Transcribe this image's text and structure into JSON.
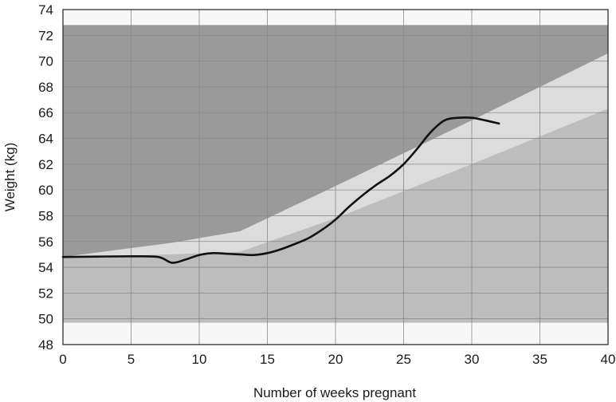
{
  "chart_data": {
    "type": "line",
    "xlabel": "Number of weeks pregnant",
    "ylabel": "Weight (kg)",
    "xlim": [
      0,
      40
    ],
    "ylim": [
      48,
      74
    ],
    "x_ticks": [
      "0",
      "5",
      "10",
      "15",
      "20",
      "25",
      "30",
      "35",
      "40"
    ],
    "y_ticks": [
      "48",
      "50",
      "52",
      "54",
      "56",
      "58",
      "60",
      "62",
      "64",
      "66",
      "68",
      "70",
      "72",
      "74"
    ],
    "grid": true,
    "colors": {
      "plot_background": "#f7f7f7",
      "outer_band": "#9a9a9a",
      "lower_band": "#bdbdbd",
      "target_band": "#dcdcdc",
      "grid": "#8a8a8a",
      "line": "#111111"
    },
    "bands": {
      "outer_range": [
        49.7,
        72.8
      ],
      "target_upper": [
        {
          "x": 0,
          "y": 54.8
        },
        {
          "x": 8,
          "y": 55.9
        },
        {
          "x": 13,
          "y": 56.8
        },
        {
          "x": 20,
          "y": 60.3
        },
        {
          "x": 30,
          "y": 65.4
        },
        {
          "x": 40,
          "y": 70.6
        }
      ],
      "target_lower": [
        {
          "x": 0,
          "y": 54.7
        },
        {
          "x": 8,
          "y": 55.0
        },
        {
          "x": 13,
          "y": 55.2
        },
        {
          "x": 20,
          "y": 57.8
        },
        {
          "x": 30,
          "y": 62.0
        },
        {
          "x": 40,
          "y": 66.3
        }
      ]
    },
    "series": [
      {
        "points": [
          {
            "x": 0,
            "y": 54.8
          },
          {
            "x": 5,
            "y": 54.85
          },
          {
            "x": 7,
            "y": 54.8
          },
          {
            "x": 8,
            "y": 54.35
          },
          {
            "x": 9,
            "y": 54.6
          },
          {
            "x": 10,
            "y": 54.95
          },
          {
            "x": 11,
            "y": 55.1
          },
          {
            "x": 12,
            "y": 55.05
          },
          {
            "x": 13,
            "y": 55.0
          },
          {
            "x": 14,
            "y": 54.95
          },
          {
            "x": 15,
            "y": 55.1
          },
          {
            "x": 16,
            "y": 55.4
          },
          {
            "x": 17,
            "y": 55.8
          },
          {
            "x": 18,
            "y": 56.25
          },
          {
            "x": 19,
            "y": 56.9
          },
          {
            "x": 20,
            "y": 57.7
          },
          {
            "x": 21,
            "y": 58.7
          },
          {
            "x": 22,
            "y": 59.6
          },
          {
            "x": 23,
            "y": 60.4
          },
          {
            "x": 24,
            "y": 61.1
          },
          {
            "x": 25,
            "y": 62.0
          },
          {
            "x": 26,
            "y": 63.2
          },
          {
            "x": 27,
            "y": 64.5
          },
          {
            "x": 28,
            "y": 65.4
          },
          {
            "x": 29,
            "y": 65.6
          },
          {
            "x": 30,
            "y": 65.6
          },
          {
            "x": 31,
            "y": 65.4
          },
          {
            "x": 32,
            "y": 65.15
          }
        ]
      }
    ]
  }
}
